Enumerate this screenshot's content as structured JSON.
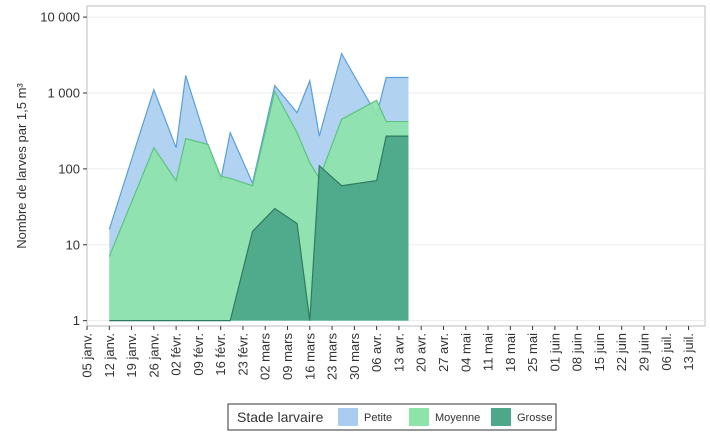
{
  "chart_data": {
    "type": "area",
    "title": "",
    "xlabel": "",
    "ylabel": "Nombre de larves par 1,5 m³",
    "yscale": "log",
    "ylim": [
      0.85,
      14000
    ],
    "yticks": [
      1,
      10,
      100,
      1000,
      10000
    ],
    "ytick_labels": [
      "1",
      "10",
      "100",
      "1 000",
      "10 000"
    ],
    "categories": [
      "05 janv.",
      "12 janv.",
      "19 janv.",
      "26 janv.",
      "02 févr.",
      "09 févr.",
      "16 févr.",
      "23 févr.",
      "02 mars",
      "09 mars",
      "16 mars",
      "23 mars",
      "30 mars",
      "06 avr.",
      "13 avr.",
      "20 avr.",
      "27 avr.",
      "04 mai",
      "11 mai",
      "18 mai",
      "25 mai",
      "01 juin",
      "08 juin",
      "15 juin",
      "22 juin",
      "29 juin",
      "06 juil.",
      "13 juil."
    ],
    "grid": "horizontal",
    "legend_position": "bottom",
    "legend_title": "Stade larvaire",
    "series": [
      {
        "name": "Petite",
        "color": "#a9cdef",
        "stroke": "#5b9fd8",
        "x": [
          "12 janv.",
          "26 janv.",
          "02 févr.",
          "05 févr.",
          "12 févr.",
          "16 févr.",
          "19 févr.",
          "26 févr.",
          "05 mars",
          "12 mars",
          "16 mars",
          "19 mars",
          "26 mars",
          "06 avr.",
          "09 avr.",
          "16 avr."
        ],
        "values": [
          16,
          1100,
          190,
          1700,
          200,
          70,
          300,
          65,
          1250,
          550,
          1450,
          270,
          3300,
          510,
          1600,
          1600
        ]
      },
      {
        "name": "Moyenne",
        "color": "#8de3a8",
        "stroke": "#5cc47f",
        "x": [
          "12 janv.",
          "26 janv.",
          "02 févr.",
          "05 févr.",
          "12 févr.",
          "16 févr.",
          "19 févr.",
          "26 févr.",
          "05 mars",
          "12 mars",
          "16 mars",
          "19 mars",
          "26 mars",
          "06 avr.",
          "09 avr.",
          "16 avr."
        ],
        "values": [
          7,
          190,
          70,
          250,
          210,
          80,
          75,
          60,
          1050,
          300,
          120,
          75,
          450,
          800,
          420,
          420
        ]
      },
      {
        "name": "Grosse",
        "color": "#4da88a",
        "stroke": "#2f7a60",
        "x": [
          "12 janv.",
          "26 janv.",
          "02 févr.",
          "05 févr.",
          "12 févr.",
          "16 févr.",
          "19 févr.",
          "26 févr.",
          "05 mars",
          "12 mars",
          "16 mars",
          "19 mars",
          "26 mars",
          "06 avr.",
          "09 avr.",
          "16 avr."
        ],
        "values": [
          1,
          1,
          1,
          1,
          1,
          1,
          1,
          15,
          30,
          19,
          1,
          110,
          60,
          70,
          270,
          270
        ]
      }
    ]
  }
}
